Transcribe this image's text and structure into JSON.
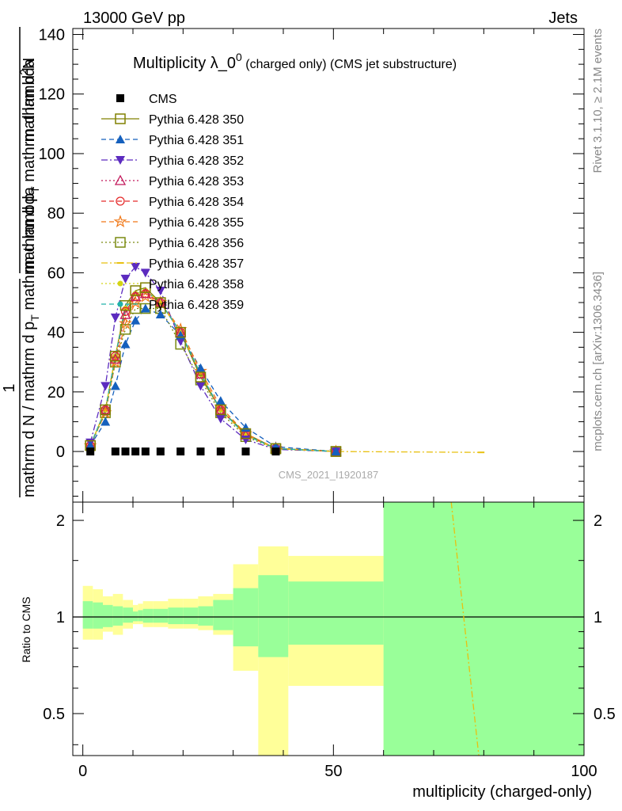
{
  "header": {
    "left": "13000 GeV pp",
    "right": "Jets"
  },
  "side_labels": {
    "rivet": "Rivet 3.1.10, ≥ 2.1M events",
    "mcplots": "mcplots.cern.ch [arXiv:1306.3436]"
  },
  "watermark": "CMS_2021_I1920187",
  "chart_data": [
    {
      "type": "line",
      "title": "Multiplicity λ_0",
      "title_sup": "0",
      "title_suffix": " (charged only) (CMS jet substructure)",
      "ylabel": "1 / (mathrm d N / mathrm d p_T mathrm d lambda) · mathrm d²N / (mathrm d p_T mathrm d lambda)",
      "ylabel_parts": {
        "num": "mathrm d",
        "num_sup": "2",
        "num_tail": "N",
        "den_a": "mathrm d p",
        "den_a_sub": "T",
        "den_b": "mathrm d lambda",
        "left_num": "1",
        "left_den": "mathrm d N / mathrm d p",
        "left_den_sub": "T",
        "left_den_tail": "mathrm d lambda"
      },
      "xlim": [
        -2,
        100
      ],
      "ylim": [
        -17,
        142
      ],
      "yticks": [
        0,
        20,
        40,
        60,
        80,
        100,
        120,
        140
      ],
      "legend_position": "top-left",
      "series": [
        {
          "name": "CMS",
          "color": "#000000",
          "marker": "square-filled",
          "dash": "none",
          "x": [
            1.5,
            6.5,
            8.5,
            10.5,
            12.5,
            15.5,
            19.5,
            23.5,
            27.5,
            32.5,
            38.5
          ],
          "y": [
            0,
            0,
            0,
            0,
            0,
            0,
            0,
            0,
            0,
            0,
            0
          ]
        },
        {
          "name": "Pythia 6.428 350",
          "color": "#808000",
          "marker": "square-open",
          "dash": "solid",
          "x": [
            1.5,
            4.5,
            6.5,
            8.5,
            10.5,
            12.5,
            15.5,
            19.5,
            23.5,
            27.5,
            32.5,
            38.5,
            50.5
          ],
          "y": [
            2,
            14,
            32,
            49,
            54,
            55,
            50,
            40,
            25,
            14,
            6,
            1,
            0
          ]
        },
        {
          "name": "Pythia 6.428 351",
          "color": "#1560bd",
          "marker": "triangle-up-filled",
          "dash": "dashed",
          "x": [
            1.5,
            4.5,
            6.5,
            8.5,
            10.5,
            12.5,
            15.5,
            19.5,
            23.5,
            27.5,
            32.5,
            38.5,
            50.5
          ],
          "y": [
            2,
            10,
            22,
            36,
            44,
            48,
            46,
            39,
            28,
            17,
            8,
            1.6,
            0
          ]
        },
        {
          "name": "Pythia 6.428 352",
          "color": "#5c2bbf",
          "marker": "triangle-down-filled",
          "dash": "dashdot",
          "x": [
            1.5,
            4.5,
            6.5,
            8.5,
            10.5,
            12.5,
            15.5,
            19.5,
            23.5,
            27.5,
            32.5,
            38.5,
            50.5
          ],
          "y": [
            3,
            22,
            45,
            58,
            62,
            60,
            54,
            37,
            22,
            11,
            4,
            0.7,
            0
          ]
        },
        {
          "name": "Pythia 6.428 353",
          "color": "#c2185b",
          "marker": "triangle-up-open",
          "dash": "dotted",
          "x": [
            1.5,
            4.5,
            6.5,
            8.5,
            10.5,
            12.5,
            15.5,
            19.5,
            23.5,
            27.5,
            32.5,
            38.5,
            50.5
          ],
          "y": [
            2,
            14,
            31,
            46,
            52,
            53,
            50,
            40,
            26,
            14,
            5.5,
            1,
            0
          ]
        },
        {
          "name": "Pythia 6.428 354",
          "color": "#e52b2b",
          "marker": "circle-open",
          "dash": "dashed",
          "x": [
            1.5,
            4.5,
            6.5,
            8.5,
            10.5,
            12.5,
            15.5,
            19.5,
            23.5,
            27.5,
            32.5,
            38.5,
            50.5
          ],
          "y": [
            2,
            14,
            32,
            47,
            52,
            53,
            50,
            40,
            26,
            14,
            5.5,
            1,
            0
          ]
        },
        {
          "name": "Pythia 6.428 355",
          "color": "#f07818",
          "marker": "star-open",
          "dash": "dashed",
          "x": [
            1.5,
            4.5,
            6.5,
            8.5,
            10.5,
            12.5,
            15.5,
            19.5,
            23.5,
            27.5,
            32.5,
            38.5,
            50.5
          ],
          "y": [
            2,
            13,
            30,
            43,
            50,
            52,
            50,
            41,
            27,
            15,
            6,
            1.1,
            0
          ]
        },
        {
          "name": "Pythia 6.428 356",
          "color": "#7a8a10",
          "marker": "square-open",
          "dash": "dotted",
          "x": [
            1.5,
            4.5,
            6.5,
            8.5,
            10.5,
            12.5,
            15.5,
            19.5,
            23.5,
            27.5,
            32.5,
            38.5,
            50.5
          ],
          "y": [
            2,
            13,
            30,
            41,
            48,
            48,
            48,
            36,
            24,
            13,
            5,
            0.9,
            0
          ]
        },
        {
          "name": "Pythia 6.428 357",
          "color": "#e8c010",
          "marker": "dash-small",
          "dash": "dashdot",
          "x": [
            1.5,
            4.5,
            6.5,
            8.5,
            10.5,
            12.5,
            15.5,
            19.5,
            23.5,
            27.5,
            32.5,
            38.5,
            50.5,
            79.5
          ],
          "y": [
            2,
            14,
            32,
            48,
            53,
            54,
            50,
            40,
            26,
            14,
            5.5,
            1,
            0,
            -0.3
          ]
        },
        {
          "name": "Pythia 6.428 358",
          "color": "#d4d414",
          "marker": "dot",
          "dash": "dotted",
          "x": [
            1.5,
            4.5,
            6.5,
            8.5,
            10.5,
            12.5,
            15.5,
            19.5,
            23.5,
            27.5,
            32.5,
            38.5,
            50.5
          ],
          "y": [
            2,
            14,
            32,
            48,
            53,
            54,
            50,
            40,
            26,
            14,
            5.5,
            1,
            0
          ]
        },
        {
          "name": "Pythia 6.428 359",
          "color": "#20b2aa",
          "marker": "dot",
          "dash": "dashed",
          "x": [
            1.5,
            4.5,
            6.5,
            8.5,
            10.5,
            12.5,
            15.5,
            19.5,
            23.5,
            27.5,
            32.5,
            38.5,
            50.5
          ],
          "y": [
            2,
            14,
            32,
            48,
            53,
            54,
            50,
            40,
            26,
            14,
            5.5,
            1,
            0
          ]
        }
      ]
    },
    {
      "type": "area",
      "ylabel": "Ratio to CMS",
      "xlabel": "multiplicity (charged-only)",
      "xlim": [
        -2,
        100
      ],
      "ylim": [
        0.37,
        2.28
      ],
      "yticks": [
        0.5,
        1,
        2
      ],
      "xticks": [
        0,
        50,
        100
      ],
      "reference_line": 1,
      "bins_x": [
        [
          0,
          2
        ],
        [
          2,
          4
        ],
        [
          4,
          6
        ],
        [
          6,
          8
        ],
        [
          8,
          10
        ],
        [
          10,
          11
        ],
        [
          11,
          12
        ],
        [
          12,
          14
        ],
        [
          14,
          17
        ],
        [
          17,
          20
        ],
        [
          20,
          23
        ],
        [
          23,
          26
        ],
        [
          26,
          30
        ],
        [
          30,
          35
        ],
        [
          35,
          41
        ],
        [
          41,
          60
        ],
        [
          60,
          100
        ]
      ],
      "yellow_band": [
        [
          0.85,
          1.25
        ],
        [
          0.85,
          1.22
        ],
        [
          0.9,
          1.16
        ],
        [
          0.88,
          1.18
        ],
        [
          0.92,
          1.13
        ],
        [
          0.95,
          1.09
        ],
        [
          0.95,
          1.1
        ],
        [
          0.93,
          1.12
        ],
        [
          0.93,
          1.12
        ],
        [
          0.92,
          1.14
        ],
        [
          0.92,
          1.14
        ],
        [
          0.91,
          1.16
        ],
        [
          0.88,
          1.18
        ],
        [
          0.68,
          1.46
        ],
        [
          0.35,
          1.66
        ],
        [
          0.61,
          1.55
        ],
        [
          0.3,
          3.0
        ]
      ],
      "green_band": [
        [
          0.92,
          1.12
        ],
        [
          0.92,
          1.11
        ],
        [
          0.93,
          1.09
        ],
        [
          0.94,
          1.08
        ],
        [
          0.96,
          1.07
        ],
        [
          0.97,
          1.04
        ],
        [
          0.97,
          1.05
        ],
        [
          0.96,
          1.06
        ],
        [
          0.96,
          1.06
        ],
        [
          0.95,
          1.07
        ],
        [
          0.95,
          1.07
        ],
        [
          0.94,
          1.08
        ],
        [
          0.91,
          1.13
        ],
        [
          0.81,
          1.23
        ],
        [
          0.75,
          1.35
        ],
        [
          0.82,
          1.29
        ],
        [
          0.3,
          3.0
        ]
      ],
      "series": [
        {
          "name": "Pythia 6.428 357",
          "color": "#e8c010",
          "dash": "dashdot",
          "x": [
            73.5,
            79
          ],
          "y": [
            2.28,
            0.37
          ]
        }
      ]
    }
  ]
}
